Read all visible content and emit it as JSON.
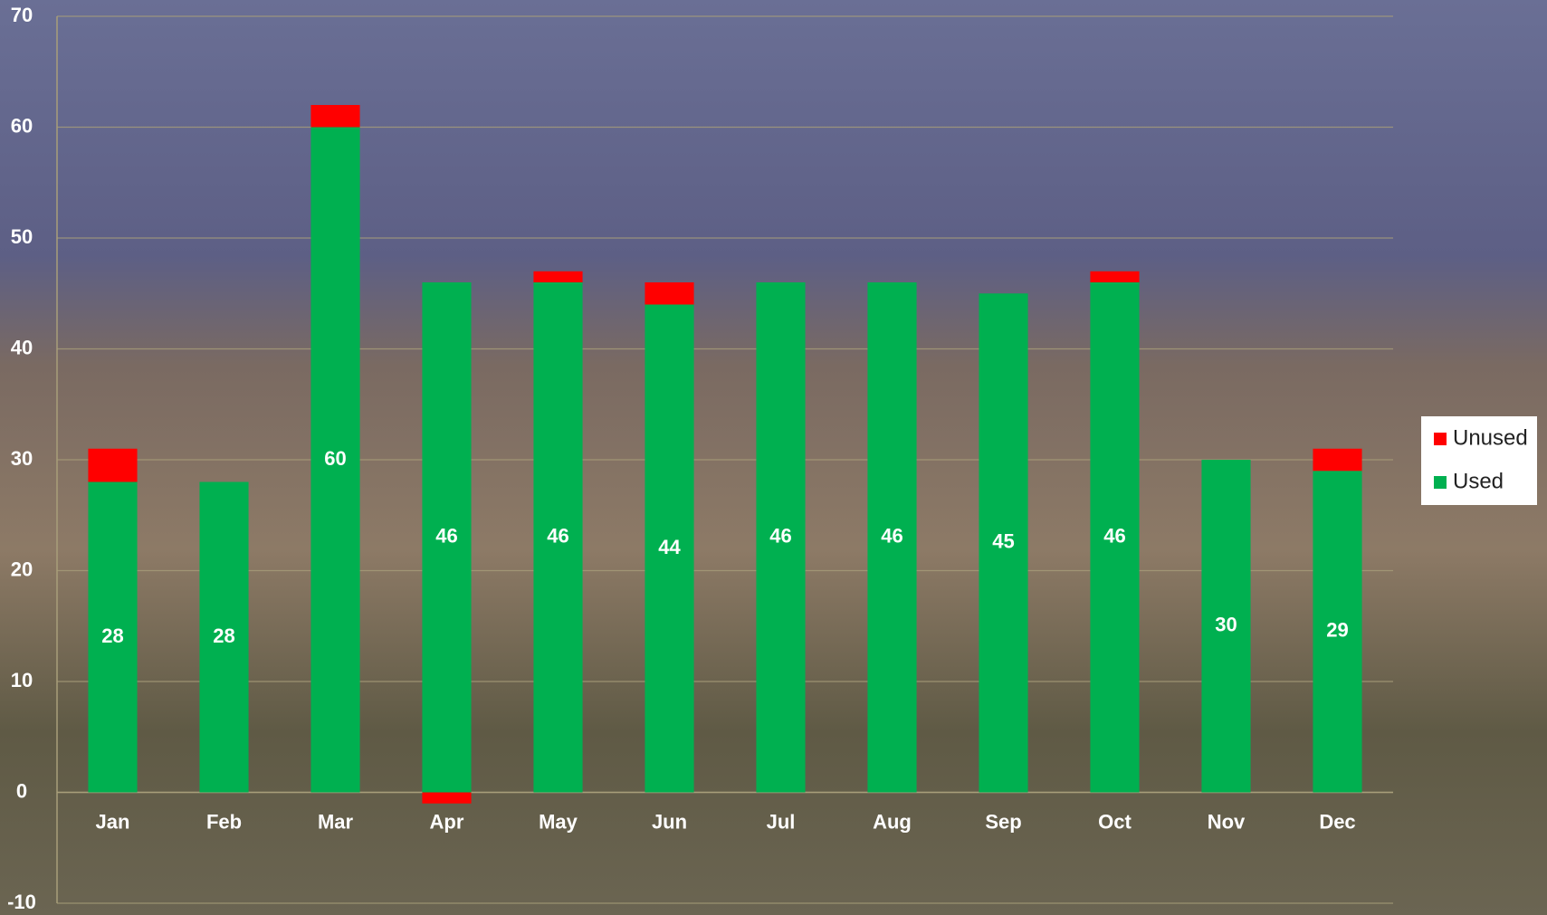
{
  "chart_data": {
    "type": "stacked_bar",
    "categories": [
      "Jan",
      "Feb",
      "Mar",
      "Apr",
      "May",
      "Jun",
      "Jul",
      "Aug",
      "Sep",
      "Oct",
      "Nov",
      "Dec"
    ],
    "series": [
      {
        "name": "Used",
        "color": "#00b050",
        "values": [
          28,
          28,
          60,
          46,
          46,
          44,
          46,
          46,
          45,
          46,
          30,
          29
        ]
      },
      {
        "name": "Unused",
        "color": "#ff0000",
        "values": [
          3,
          0,
          2,
          -1,
          1,
          2,
          0,
          0,
          0,
          1,
          0,
          2
        ]
      }
    ],
    "ylim": [
      -10,
      70
    ],
    "yticks": [
      -10,
      0,
      10,
      20,
      30,
      40,
      50,
      60,
      70
    ],
    "grid": true,
    "legend": "right"
  }
}
